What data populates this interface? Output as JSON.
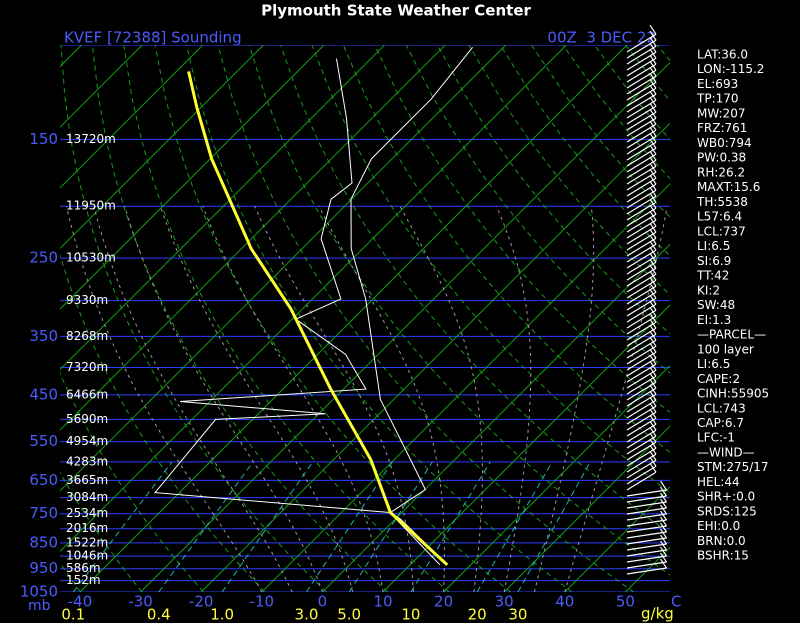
{
  "chart_data": {
    "type": "skewt",
    "title": "Plymouth State Weather Center",
    "station": "KVEF [72388] Sounding",
    "time": "00Z  3 DEC 22",
    "ylabel": "mb",
    "xlabel": "C",
    "mixing_label": "g/kg",
    "ylim": [
      1050,
      100
    ],
    "yticks": [
      150,
      250,
      350,
      450,
      550,
      650,
      750,
      850,
      950,
      1050
    ],
    "minor_yticks": [
      100,
      200,
      300,
      400,
      500,
      600,
      700,
      800,
      900,
      1000
    ],
    "xticks": [
      -40,
      -30,
      -20,
      -10,
      0,
      10,
      20,
      30,
      40,
      50
    ],
    "mixing_ratios": [
      0.1,
      0.4,
      {
        "value": 1,
        "label": "1.0"
      },
      {
        "value": 3,
        "label": "3.0"
      },
      {
        "value": 5,
        "label": "5.0"
      },
      10,
      20,
      30
    ],
    "heights": [
      {
        "p": 150,
        "label": "13720m"
      },
      {
        "p": 200,
        "label": "11950m"
      },
      {
        "p": 250,
        "label": "10530m"
      },
      {
        "p": 300,
        "label": "9330m"
      },
      {
        "p": 350,
        "label": "8268m"
      },
      {
        "p": 400,
        "label": "7320m"
      },
      {
        "p": 450,
        "label": "6466m"
      },
      {
        "p": 500,
        "label": "5690m"
      },
      {
        "p": 550,
        "label": "4954m"
      },
      {
        "p": 600,
        "label": "4283m"
      },
      {
        "p": 650,
        "label": "3665m"
      },
      {
        "p": 700,
        "label": "3084m"
      },
      {
        "p": 750,
        "label": "2534m"
      },
      {
        "p": 800,
        "label": "2016m"
      },
      {
        "p": 850,
        "label": "1522m"
      },
      {
        "p": 900,
        "label": "1046m"
      },
      {
        "p": 950,
        "label": "586m"
      },
      {
        "p": 1000,
        "label": "152m"
      }
    ],
    "temperature": {
      "color": "#ffffff",
      "p": [
        934,
        768,
        746,
        676,
        569,
        459,
        298,
        240,
        194,
        163,
        126,
        101
      ],
      "t": [
        16.1,
        0.9,
        -1.9,
        0.1,
        -9.8,
        -22.2,
        -41.2,
        -51.9,
        -60.1,
        -63.4,
        -63.4,
        -65.1
      ]
    },
    "dewpoint": {
      "color": "#ffffff",
      "p": [
        934,
        746,
        685,
        500,
        488,
        463,
        439,
        378,
        325,
        298,
        230,
        194,
        181,
        137,
        106
      ],
      "t": [
        14.9,
        -2.0,
        -44.0,
        -46.1,
        -28.9,
        -54.9,
        -26.3,
        -35.4,
        -49.4,
        -45.3,
        -58.5,
        -63.4,
        -62.6,
        -74.2,
        -85.7
      ]
    },
    "parcel": {
      "color": "#ffff30",
      "p": [
        934,
        746,
        594,
        439,
        311,
        240,
        163,
        131,
        112
      ],
      "t": [
        16.1,
        -1.9,
        -13.9,
        -32.1,
        -51.9,
        -68.4,
        -89.8,
        -100.6,
        -108
      ]
    },
    "indices": [
      "LAT:36.0",
      "LON:-115.2",
      "EL:693",
      "TP:170",
      "MW:207",
      "FRZ:761",
      "WB0:794",
      "PW:0.38",
      "RH:26.2",
      "MAXT:15.6",
      "TH:5538",
      "L57:6.4",
      "LCL:737",
      "LI:6.5",
      "SI:6.9",
      "TT:42",
      "KI:2",
      "SW:48",
      "EI:1.3",
      "—PARCEL—",
      "100 layer",
      "LI:6.5",
      "CAPE:2",
      "CINH:55905",
      "LCL:743",
      "CAP:6.7",
      "LFC:-1",
      "—WIND—",
      "STM:275/17",
      "HEL:44",
      "SHR+:0.0",
      "SRDS:125",
      "EHI:0.0",
      "BRN:0.0",
      "BSHR:15"
    ]
  }
}
